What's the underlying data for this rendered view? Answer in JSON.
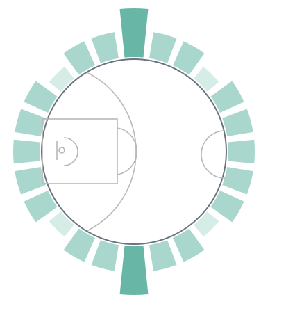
{
  "chart_data": {
    "type": "radial-bar",
    "title": "",
    "series": [
      {
        "name": "",
        "values": [
          9,
          5,
          5,
          3,
          5,
          5,
          5,
          5,
          5,
          3,
          5,
          5,
          9,
          5,
          5,
          3,
          5,
          5,
          5,
          5,
          5,
          3,
          5,
          5
        ]
      }
    ],
    "value_max": 9,
    "colors": {
      "high": "#68b6a6",
      "mid": "#a9d7cd",
      "low": "#d6ece7",
      "court_line": "#b8b8b8",
      "court_boundary": "#6b7380"
    },
    "grid": false,
    "legend": "none"
  }
}
